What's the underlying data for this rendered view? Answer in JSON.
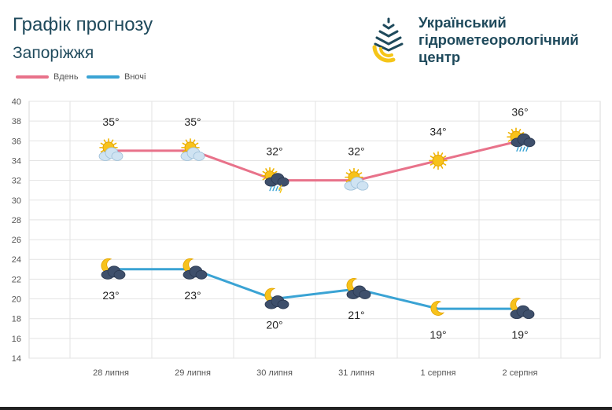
{
  "header": {
    "title": "Графік прогнозу",
    "city": "Запоріжжя"
  },
  "logo": {
    "line1": "Український",
    "line2": "гідрометеорологічний",
    "line3": "центр",
    "icon": "water-drop-logo-icon",
    "colors": {
      "blue": "#1f4a5c",
      "yellow": "#f5c518"
    }
  },
  "chart_data": {
    "type": "line",
    "categories": [
      "28 липня",
      "29 липня",
      "30 липня",
      "31 липня",
      "1 серпня",
      "2 серпня"
    ],
    "series": [
      {
        "name": "Вдень",
        "color": "#e8728a",
        "values": [
          35,
          35,
          32,
          32,
          34,
          36
        ],
        "labels": [
          "35°",
          "35°",
          "32°",
          "32°",
          "34°",
          "36°"
        ],
        "icons": [
          "sun-cloud-icon",
          "sun-cloud-icon",
          "thunderstorm-rain-icon",
          "sun-cloud-icon",
          "sun-icon",
          "sun-rain-cloud-icon"
        ]
      },
      {
        "name": "Вночі",
        "color": "#3aa3d4",
        "values": [
          23,
          23,
          20,
          21,
          19,
          19
        ],
        "labels": [
          "23°",
          "23°",
          "20°",
          "21°",
          "19°",
          "19°"
        ],
        "icons": [
          "moon-cloud-icon",
          "moon-cloud-icon",
          "moon-cloud-icon",
          "moon-cloud-icon",
          "moon-icon",
          "moon-cloud-icon"
        ]
      }
    ],
    "ylim": [
      14,
      40
    ],
    "yticks": [
      "14",
      "16",
      "18",
      "20",
      "22",
      "24",
      "26",
      "28",
      "30",
      "32",
      "34",
      "36",
      "38",
      "40"
    ],
    "grid": true,
    "legend_position": "top-left"
  }
}
